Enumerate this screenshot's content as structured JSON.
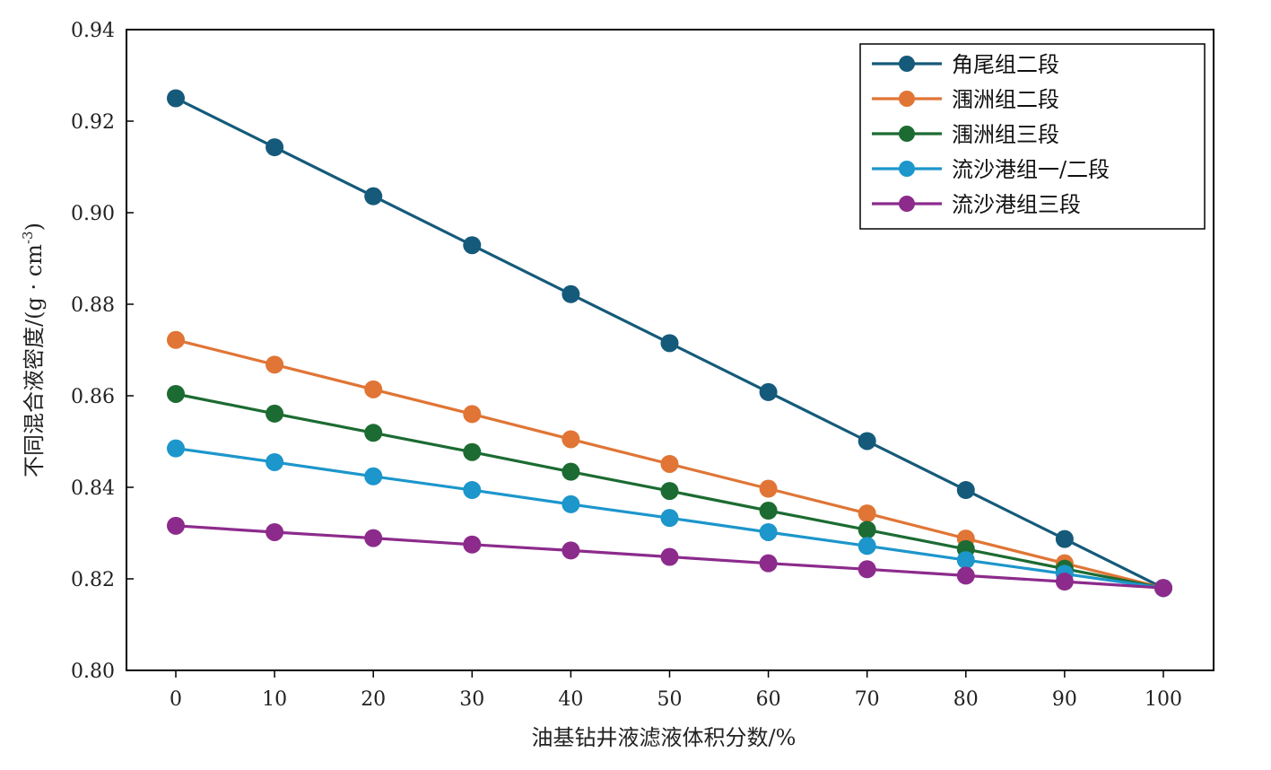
{
  "chart_data": {
    "type": "line",
    "xlabel": "油基钻井液滤液体积分数/%",
    "ylabel": "不同混合液密度/(g·cm-3)",
    "ylabel_parts": {
      "main": "不同混合液密度/(g · cm",
      "sup": "-3",
      "end": ")"
    },
    "x": [
      0,
      10,
      20,
      30,
      40,
      50,
      60,
      70,
      80,
      90,
      100
    ],
    "xticks": [
      "0",
      "10",
      "20",
      "30",
      "40",
      "50",
      "60",
      "70",
      "80",
      "90",
      "100"
    ],
    "yticks": [
      "0.80",
      "0.82",
      "0.84",
      "0.86",
      "0.88",
      "0.90",
      "0.92",
      "0.94"
    ],
    "ylim": [
      0.8,
      0.94
    ],
    "grid": false,
    "legend_position": "top-right",
    "series": [
      {
        "name": "角尾组二段",
        "color": "#155a7a",
        "values": [
          0.925,
          0.9143,
          0.9036,
          0.8929,
          0.8822,
          0.8715,
          0.8608,
          0.8501,
          0.8394,
          0.8287,
          0.818
        ]
      },
      {
        "name": "涠洲组二段",
        "color": "#e07535",
        "values": [
          0.8722,
          0.8668,
          0.8614,
          0.856,
          0.8505,
          0.8451,
          0.8397,
          0.8343,
          0.8288,
          0.8234,
          0.818
        ]
      },
      {
        "name": "涠洲组三段",
        "color": "#1c6b32",
        "values": [
          0.8604,
          0.8561,
          0.8519,
          0.8477,
          0.8434,
          0.8392,
          0.8349,
          0.8307,
          0.8265,
          0.8222,
          0.818
        ]
      },
      {
        "name": "流沙港组一/二段",
        "color": "#1c96cb",
        "values": [
          0.8485,
          0.8455,
          0.8424,
          0.8394,
          0.8363,
          0.8333,
          0.8302,
          0.8272,
          0.8241,
          0.8211,
          0.818
        ]
      },
      {
        "name": "流沙港组三段",
        "color": "#8c2b8c",
        "values": [
          0.8316,
          0.8302,
          0.8289,
          0.8275,
          0.8262,
          0.8248,
          0.8234,
          0.8221,
          0.8207,
          0.8194,
          0.818
        ]
      }
    ]
  }
}
